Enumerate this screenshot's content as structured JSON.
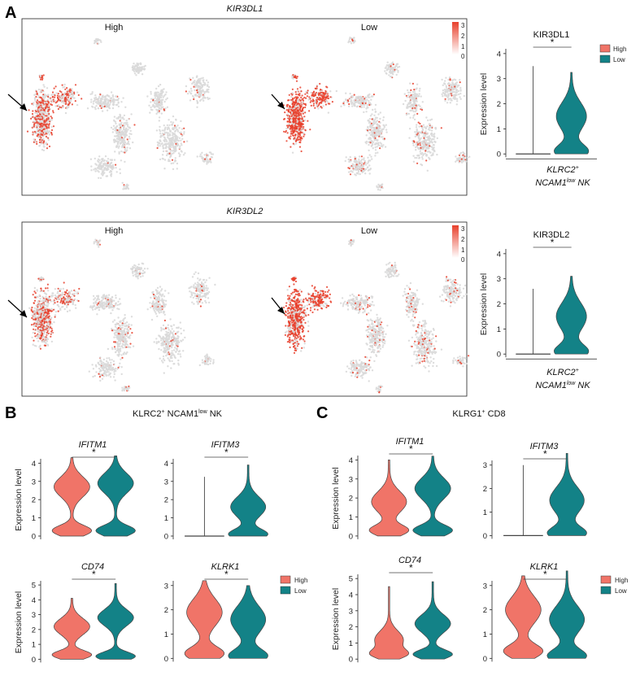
{
  "colors": {
    "high": "#F07468",
    "low": "#138287",
    "umap_bg": "#D9D9D9",
    "umap_hot": "#E8402C",
    "axis": "#222222"
  },
  "panels": {
    "a": "A",
    "b": "B",
    "c": "C"
  },
  "umap": [
    {
      "title": "KIR3DL1",
      "groups": [
        "High",
        "Low"
      ],
      "colorbar": {
        "ticks": [
          "3",
          "2",
          "1",
          "0"
        ]
      }
    },
    {
      "title": "KIR3DL2",
      "groups": [
        "High",
        "Low"
      ],
      "colorbar": {
        "ticks": [
          "3",
          "2",
          "1",
          "0"
        ]
      }
    }
  ],
  "category_line1": "KLRC2",
  "category_sup": "+",
  "category_line2_a": "NCAM1",
  "category_line2_sup": "low",
  "category_line2_b": " NK",
  "section_b": {
    "title_a": "KLRC2",
    "title_sup": "+",
    "title_b": " NCAM1",
    "title_sup2": "low",
    "title_c": " NK"
  },
  "section_c": {
    "title_a": "KLRG1",
    "title_sup": "+",
    "title_b": " CD8"
  },
  "legend": [
    "High",
    "Low"
  ],
  "ylabel": "Expression level",
  "sig": "*",
  "chart_data": [
    {
      "type": "violin",
      "id": "a1",
      "title": "KIR3DL1",
      "ylabel": "Expression level",
      "ylim": [
        0,
        4
      ],
      "yticks": [
        0,
        1,
        2,
        3,
        4
      ],
      "series": [
        {
          "name": "High",
          "max": 3.5,
          "shape": "zero"
        },
        {
          "name": "Low",
          "max": 3.25,
          "modes": [
            0.1,
            1.5
          ]
        }
      ],
      "significance": "*"
    },
    {
      "type": "violin",
      "id": "a2",
      "title": "KIR3DL2",
      "ylabel": "Expression level",
      "ylim": [
        0,
        4
      ],
      "yticks": [
        0,
        1,
        2,
        3,
        4
      ],
      "series": [
        {
          "name": "High",
          "max": 2.6,
          "shape": "zero"
        },
        {
          "name": "Low",
          "max": 3.1,
          "modes": [
            0.1,
            1.5
          ]
        }
      ],
      "significance": "*"
    },
    {
      "type": "violin",
      "id": "b1",
      "title": "IFITM1",
      "ylabel": "Expression level",
      "ylim": [
        0,
        4
      ],
      "yticks": [
        0,
        1,
        2,
        3,
        4
      ],
      "series": [
        {
          "name": "High",
          "max": 4.3,
          "modes": [
            0.3,
            2.7
          ]
        },
        {
          "name": "Low",
          "max": 4.4,
          "modes": [
            0.3,
            2.9
          ]
        }
      ],
      "significance": "*"
    },
    {
      "type": "violin",
      "id": "b2",
      "title": "IFITM3",
      "ylabel": "",
      "ylim": [
        0,
        4
      ],
      "yticks": [
        0,
        1,
        2,
        3,
        4
      ],
      "series": [
        {
          "name": "High",
          "max": 3.25,
          "shape": "zero"
        },
        {
          "name": "Low",
          "max": 3.9,
          "modes": [
            0.1,
            1.6
          ]
        }
      ],
      "significance": "*"
    },
    {
      "type": "violin",
      "id": "b3",
      "title": "CD74",
      "ylabel": "Expression level",
      "ylim": [
        0,
        5
      ],
      "yticks": [
        0,
        1,
        2,
        3,
        4,
        5
      ],
      "series": [
        {
          "name": "High",
          "max": 4.1,
          "modes": [
            0.3,
            2.2
          ]
        },
        {
          "name": "Low",
          "max": 5.1,
          "modes": [
            0.2,
            2.8
          ]
        }
      ],
      "significance": "*"
    },
    {
      "type": "violin",
      "id": "b4",
      "title": "KLRK1",
      "ylabel": "",
      "ylim": [
        0,
        3
      ],
      "yticks": [
        0,
        1,
        2,
        3
      ],
      "series": [
        {
          "name": "High",
          "max": 3.2,
          "modes": [
            0.2,
            1.9
          ]
        },
        {
          "name": "Low",
          "max": 3.0,
          "modes": [
            0.1,
            1.6
          ]
        }
      ],
      "significance": "*"
    },
    {
      "type": "violin",
      "id": "c1",
      "title": "IFITM1",
      "ylabel": "Expression level",
      "ylim": [
        0,
        4
      ],
      "yticks": [
        0,
        1,
        2,
        3,
        4
      ],
      "series": [
        {
          "name": "High",
          "max": 4.0,
          "modes": [
            0.3,
            1.8
          ]
        },
        {
          "name": "Low",
          "max": 4.2,
          "modes": [
            0.3,
            2.5
          ]
        }
      ],
      "significance": "*"
    },
    {
      "type": "violin",
      "id": "c2",
      "title": "IFITM3",
      "ylabel": "",
      "ylim": [
        0,
        3
      ],
      "yticks": [
        0,
        1,
        2,
        3
      ],
      "series": [
        {
          "name": "High",
          "max": 3.0,
          "shape": "zero"
        },
        {
          "name": "Low",
          "max": 3.5,
          "modes": [
            0.1,
            1.5
          ]
        }
      ],
      "significance": "*"
    },
    {
      "type": "violin",
      "id": "c3",
      "title": "CD74",
      "ylabel": "Expression level",
      "ylim": [
        0,
        5
      ],
      "yticks": [
        0,
        1,
        2,
        3,
        4,
        5
      ],
      "series": [
        {
          "name": "High",
          "max": 4.5,
          "modes": [
            0.3,
            1.2
          ]
        },
        {
          "name": "Low",
          "max": 4.8,
          "modes": [
            0.3,
            2.2
          ]
        }
      ],
      "significance": "*"
    },
    {
      "type": "violin",
      "id": "c4",
      "title": "KLRK1",
      "ylabel": "",
      "ylim": [
        0,
        3
      ],
      "yticks": [
        0,
        1,
        2,
        3
      ],
      "series": [
        {
          "name": "High",
          "max": 3.4,
          "modes": [
            0.3,
            2.0
          ]
        },
        {
          "name": "Low",
          "max": 3.6,
          "modes": [
            0.1,
            1.6
          ]
        }
      ],
      "significance": "*"
    }
  ]
}
